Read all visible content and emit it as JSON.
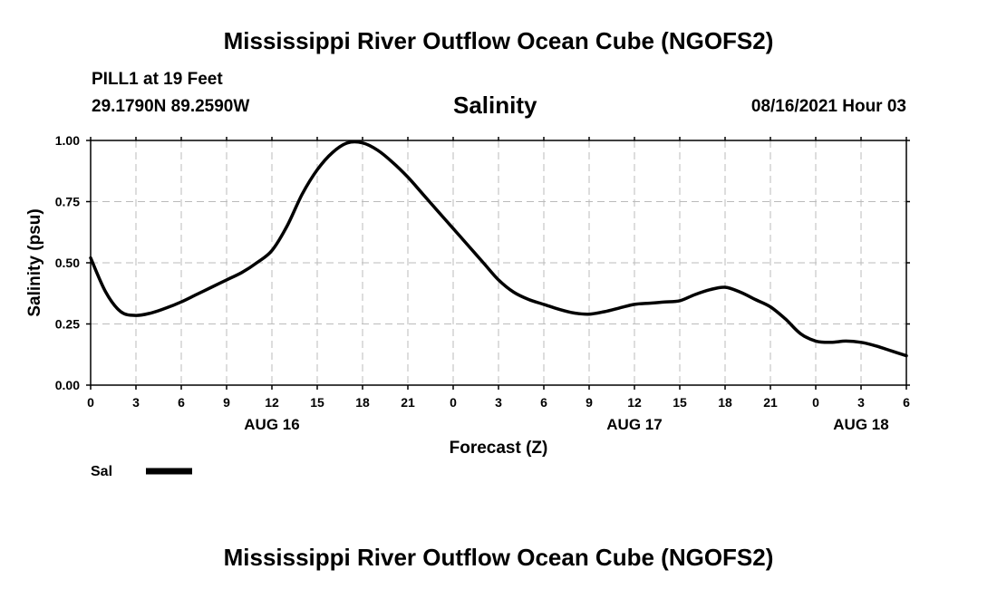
{
  "header": {
    "title": "Mississippi River Outflow Ocean Cube (NGOFS2)",
    "station": "PILL1 at 19 Feet",
    "coords": "29.1790N  89.2590W",
    "chart_title": "Salinity",
    "timestamp": "08/16/2021 Hour 03"
  },
  "footer": {
    "title": "Mississippi River Outflow Ocean Cube (NGOFS2)"
  },
  "legend": {
    "label": "Sal"
  },
  "colors": {
    "line": "#000000",
    "grid": "#bbbbbb"
  },
  "chart_data": {
    "type": "line",
    "title": "Salinity",
    "xlabel": "Forecast (Z)",
    "ylabel": "Salinity (psu)",
    "xlim": [
      0,
      54
    ],
    "ylim": [
      0,
      1.0
    ],
    "grid": true,
    "legend_position": "bottom-left",
    "x_ticks": [
      0,
      3,
      6,
      9,
      12,
      15,
      18,
      21,
      24,
      27,
      30,
      33,
      36,
      39,
      42,
      45,
      48,
      51,
      54
    ],
    "x_tick_labels": [
      "0",
      "3",
      "6",
      "9",
      "12",
      "15",
      "18",
      "21",
      "0",
      "3",
      "6",
      "9",
      "12",
      "15",
      "18",
      "21",
      "0",
      "3",
      "6"
    ],
    "y_ticks": [
      0,
      0.25,
      0.5,
      0.75,
      1.0
    ],
    "y_tick_labels": [
      "0.00",
      "0.25",
      "0.50",
      "0.75",
      "1.00"
    ],
    "date_labels": [
      {
        "x": 12,
        "label": "AUG 16"
      },
      {
        "x": 36,
        "label": "AUG 17"
      },
      {
        "x": 51,
        "label": "AUG 18"
      }
    ],
    "series": [
      {
        "name": "Sal",
        "x": [
          0,
          1,
          2,
          3,
          4,
          5,
          6,
          7,
          8,
          9,
          10,
          11,
          12,
          13,
          14,
          15,
          16,
          17,
          18,
          19,
          20,
          21,
          22,
          23,
          24,
          25,
          26,
          27,
          28,
          29,
          30,
          31,
          32,
          33,
          34,
          35,
          36,
          37,
          38,
          39,
          40,
          41,
          42,
          43,
          44,
          45,
          46,
          47,
          48,
          49,
          50,
          51,
          52,
          53,
          54
        ],
        "values": [
          0.52,
          0.38,
          0.3,
          0.285,
          0.295,
          0.315,
          0.34,
          0.37,
          0.4,
          0.43,
          0.46,
          0.5,
          0.55,
          0.65,
          0.78,
          0.88,
          0.95,
          0.99,
          0.99,
          0.96,
          0.91,
          0.85,
          0.78,
          0.71,
          0.64,
          0.57,
          0.5,
          0.43,
          0.38,
          0.35,
          0.33,
          0.31,
          0.295,
          0.29,
          0.3,
          0.315,
          0.33,
          0.335,
          0.34,
          0.345,
          0.37,
          0.39,
          0.4,
          0.38,
          0.35,
          0.32,
          0.27,
          0.21,
          0.18,
          0.175,
          0.18,
          0.175,
          0.16,
          0.14,
          0.12
        ]
      }
    ]
  }
}
